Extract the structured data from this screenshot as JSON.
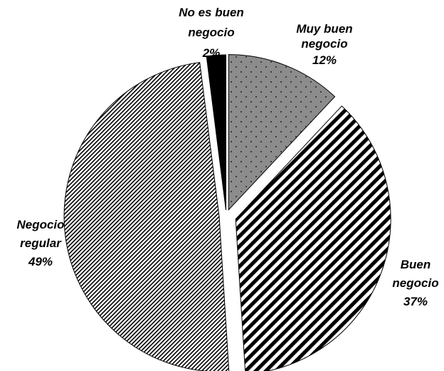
{
  "chart_data": {
    "type": "pie",
    "title": "",
    "slices": [
      {
        "key": "muy-buen-negocio",
        "label_lines": [
          "Muy buen",
          "negocio"
        ],
        "value": 12,
        "value_label": "12%",
        "pattern": "dots-gray"
      },
      {
        "key": "buen-negocio",
        "label_lines": [
          "Buen",
          "negocio"
        ],
        "value": 37,
        "value_label": "37%",
        "pattern": "wide-diagonal"
      },
      {
        "key": "negocio-regular",
        "label_lines": [
          "Negocio",
          "regular"
        ],
        "value": 49,
        "value_label": "49%",
        "pattern": "fine-diagonal"
      },
      {
        "key": "no-es-buen-negocio",
        "label_lines": [
          "No es buen",
          "negocio"
        ],
        "value": 2,
        "value_label": "2%",
        "pattern": "solid-black"
      }
    ],
    "legend": "none",
    "exploded": true
  },
  "colors": {
    "background": "#ffffff",
    "outline": "#000000",
    "dots_fill": "#8c8c8c",
    "black": "#000000",
    "white": "#ffffff"
  }
}
